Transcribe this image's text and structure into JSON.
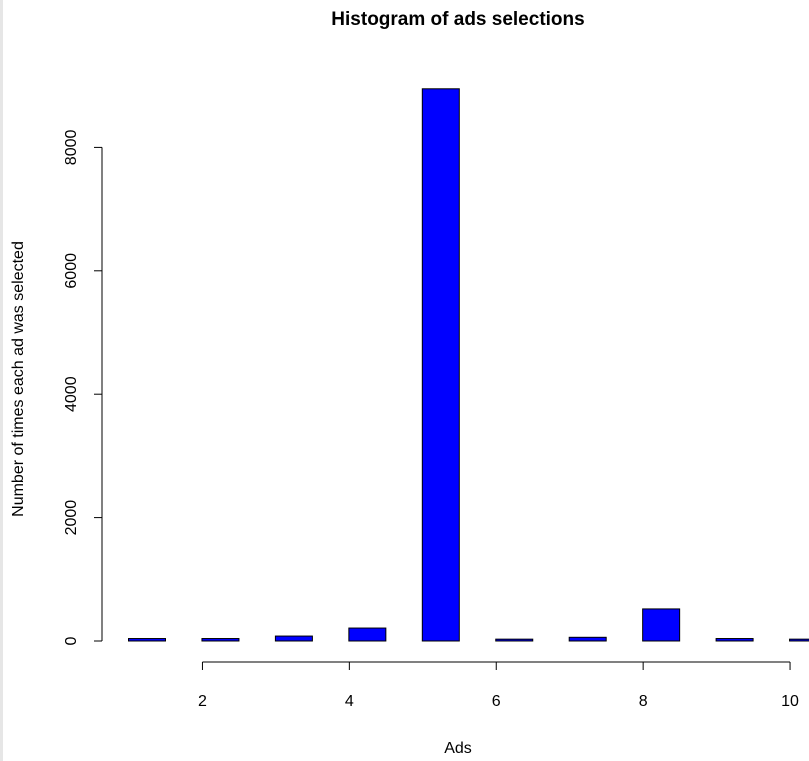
{
  "chart_data": {
    "type": "bar",
    "title": "Histogram of ads selections",
    "xlabel": "Ads",
    "ylabel": "Number of times each ad was selected",
    "x": [
      1,
      2,
      3,
      4,
      5,
      6,
      7,
      8,
      9,
      10
    ],
    "values": [
      40,
      40,
      80,
      210,
      8950,
      30,
      60,
      520,
      40,
      30
    ],
    "ylim": [
      0,
      9000
    ],
    "y_ticks": [
      "0",
      "2000",
      "4000",
      "6000",
      "8000"
    ],
    "x_ticks": [
      "2",
      "4",
      "6",
      "8",
      "10"
    ],
    "bar_color": "#0000ff",
    "grid": false
  }
}
